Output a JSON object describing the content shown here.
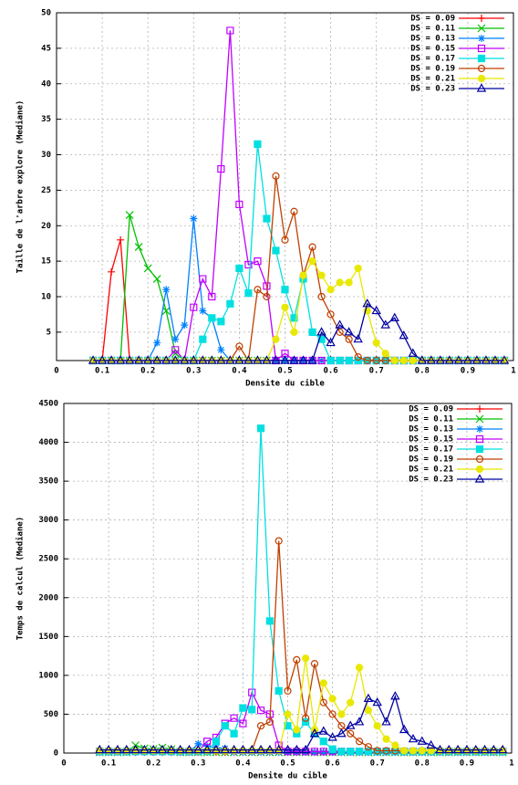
{
  "chart_data": [
    {
      "type": "line",
      "xlabel": "Densite du cible",
      "ylabel": "Taille de l'arbre explore (Mediane)",
      "xlim": [
        0,
        1
      ],
      "xticks": [
        0,
        0.1,
        0.2,
        0.3,
        0.4,
        0.5,
        0.6,
        0.7,
        0.8,
        0.9,
        1
      ],
      "ylim": [
        1,
        50
      ],
      "yticks": [
        5,
        10,
        15,
        20,
        25,
        30,
        35,
        40,
        45,
        50
      ],
      "grid": true,
      "legend": "top-right",
      "x": [
        0.08,
        0.1,
        0.12,
        0.14,
        0.16,
        0.18,
        0.2,
        0.22,
        0.24,
        0.26,
        0.28,
        0.3,
        0.32,
        0.34,
        0.36,
        0.38,
        0.4,
        0.42,
        0.44,
        0.46,
        0.48,
        0.5,
        0.52,
        0.54,
        0.56,
        0.58,
        0.6,
        0.62,
        0.64,
        0.66,
        0.68,
        0.7,
        0.72,
        0.74,
        0.76,
        0.78,
        0.8,
        0.82,
        0.84,
        0.86,
        0.88,
        0.9,
        0.92,
        0.94,
        0.96,
        0.98
      ],
      "series": [
        {
          "name": "DS = 0.09",
          "color": "#ff0000",
          "marker": "plus",
          "values": [
            1,
            1,
            13.5,
            18,
            1,
            1,
            1,
            1,
            1,
            1,
            1,
            1,
            1,
            1,
            1,
            1,
            1,
            1,
            1,
            1,
            1,
            1,
            1,
            1,
            1,
            1,
            1,
            1,
            1,
            1,
            1,
            1,
            1,
            1,
            1,
            1,
            1,
            1,
            1,
            1,
            1,
            1,
            1,
            1,
            1,
            1
          ]
        },
        {
          "name": "DS = 0.11",
          "color": "#00c000",
          "marker": "cross",
          "values": [
            1,
            1,
            1,
            1,
            21.5,
            17,
            14,
            12.5,
            8,
            2,
            1,
            1,
            1,
            1,
            1,
            1,
            1,
            1,
            1,
            1,
            1,
            1,
            1,
            1,
            1,
            1,
            1,
            1,
            1,
            1,
            1,
            1,
            1,
            1,
            1,
            1,
            1,
            1,
            1,
            1,
            1,
            1,
            1,
            1,
            1,
            1
          ]
        },
        {
          "name": "DS = 0.13",
          "color": "#0080ff",
          "marker": "star",
          "values": [
            1,
            1,
            1,
            1,
            1,
            1,
            1,
            3.5,
            11,
            4,
            6,
            21,
            8,
            7,
            2.5,
            1,
            1,
            1,
            1,
            1,
            1,
            1,
            1,
            1,
            1,
            1,
            1,
            1,
            1,
            1,
            1,
            1,
            1,
            1,
            1,
            1,
            1,
            1,
            1,
            1,
            1,
            1,
            1,
            1,
            1,
            1
          ]
        },
        {
          "name": "DS = 0.15",
          "color": "#c000ff",
          "marker": "square",
          "values": [
            1,
            1,
            1,
            1,
            1,
            1,
            1,
            1,
            1,
            2.5,
            1,
            8.5,
            12.5,
            10,
            28,
            47.5,
            23,
            14.5,
            15,
            11.5,
            1,
            2,
            1,
            1,
            1,
            1,
            1,
            1,
            1,
            1,
            1,
            1,
            1,
            1,
            1,
            1,
            1,
            1,
            1,
            1,
            1,
            1,
            1,
            1,
            1,
            1
          ]
        },
        {
          "name": "DS = 0.17",
          "color": "#00e0e0",
          "marker": "filled-square",
          "values": [
            1,
            1,
            1,
            1,
            1,
            1,
            1,
            1,
            1,
            1,
            1,
            1,
            4,
            7,
            6.5,
            9,
            14,
            10.5,
            31.5,
            21,
            16.5,
            11,
            7,
            12.5,
            5,
            4,
            1,
            1,
            1,
            1,
            1,
            1,
            1,
            1,
            1,
            1,
            1,
            1,
            1,
            1,
            1,
            1,
            1,
            1,
            1,
            1
          ]
        },
        {
          "name": "DS = 0.19",
          "color": "#c04000",
          "marker": "circle",
          "values": [
            1,
            1,
            1,
            1,
            1,
            1,
            1,
            1,
            1,
            1,
            1,
            1,
            1,
            1,
            1,
            1,
            3,
            1,
            11,
            10,
            27,
            18,
            22,
            13,
            17,
            10,
            7.5,
            5,
            4,
            1.5,
            1,
            1,
            1,
            1,
            1,
            1,
            1,
            1,
            1,
            1,
            1,
            1,
            1,
            1,
            1,
            1
          ]
        },
        {
          "name": "DS = 0.21",
          "color": "#e8e800",
          "marker": "filled-circle",
          "values": [
            1,
            1,
            1,
            1,
            1,
            1,
            1,
            1,
            1,
            1,
            1,
            1,
            1,
            1,
            1,
            1,
            1,
            1,
            1,
            1,
            4,
            8.5,
            5,
            13,
            15,
            13,
            11,
            12,
            12,
            14,
            8,
            3.5,
            2,
            1,
            1,
            1,
            1,
            1,
            1,
            1,
            1,
            1,
            1,
            1,
            1,
            1
          ]
        },
        {
          "name": "DS = 0.23",
          "color": "#0000a0",
          "marker": "triangle",
          "values": [
            1,
            1,
            1,
            1,
            1,
            1,
            1,
            1,
            1,
            1,
            1,
            1,
            1,
            1,
            1,
            1,
            1,
            1,
            1,
            1,
            1,
            1,
            1,
            1,
            1,
            5,
            3.5,
            6,
            5,
            4,
            9,
            8,
            6,
            7,
            4.5,
            2,
            1,
            1,
            1,
            1,
            1,
            1,
            1,
            1,
            1,
            1
          ]
        }
      ]
    },
    {
      "type": "line",
      "xlabel": "Densite du cible",
      "ylabel": "Temps de calcul (Mediane)",
      "xlim": [
        0,
        1
      ],
      "xticks": [
        0,
        0.1,
        0.2,
        0.3,
        0.4,
        0.5,
        0.6,
        0.7,
        0.8,
        0.9,
        1
      ],
      "ylim": [
        0,
        4500
      ],
      "yticks": [
        0,
        500,
        1000,
        1500,
        2000,
        2500,
        3000,
        3500,
        4000,
        4500
      ],
      "grid": true,
      "legend": "top-right",
      "x": [
        0.08,
        0.1,
        0.12,
        0.14,
        0.16,
        0.18,
        0.2,
        0.22,
        0.24,
        0.26,
        0.28,
        0.3,
        0.32,
        0.34,
        0.36,
        0.38,
        0.4,
        0.42,
        0.44,
        0.46,
        0.48,
        0.5,
        0.52,
        0.54,
        0.56,
        0.58,
        0.6,
        0.62,
        0.64,
        0.66,
        0.68,
        0.7,
        0.72,
        0.74,
        0.76,
        0.78,
        0.8,
        0.82,
        0.84,
        0.86,
        0.88,
        0.9,
        0.92,
        0.94,
        0.96,
        0.98
      ],
      "series": [
        {
          "name": "DS = 0.09",
          "color": "#ff0000",
          "marker": "plus",
          "values": [
            10,
            10,
            30,
            40,
            10,
            10,
            10,
            10,
            10,
            10,
            10,
            10,
            10,
            10,
            10,
            10,
            10,
            10,
            10,
            10,
            10,
            10,
            10,
            10,
            10,
            10,
            10,
            10,
            10,
            10,
            10,
            10,
            10,
            10,
            10,
            10,
            10,
            10,
            10,
            10,
            10,
            10,
            10,
            10,
            10,
            10
          ]
        },
        {
          "name": "DS = 0.11",
          "color": "#00c000",
          "marker": "cross",
          "values": [
            10,
            10,
            10,
            10,
            100,
            60,
            50,
            70,
            50,
            10,
            10,
            10,
            10,
            10,
            10,
            10,
            10,
            10,
            10,
            10,
            10,
            10,
            10,
            10,
            10,
            10,
            10,
            10,
            10,
            10,
            10,
            10,
            10,
            10,
            10,
            10,
            10,
            10,
            10,
            10,
            10,
            10,
            10,
            10,
            10,
            10
          ]
        },
        {
          "name": "DS = 0.13",
          "color": "#0080ff",
          "marker": "star",
          "values": [
            10,
            10,
            10,
            10,
            10,
            10,
            10,
            10,
            10,
            10,
            10,
            120,
            90,
            70,
            60,
            10,
            10,
            10,
            10,
            10,
            10,
            10,
            10,
            10,
            10,
            10,
            10,
            10,
            10,
            10,
            10,
            10,
            10,
            10,
            10,
            10,
            10,
            10,
            10,
            10,
            10,
            10,
            10,
            10,
            10,
            10
          ]
        },
        {
          "name": "DS = 0.15",
          "color": "#c000ff",
          "marker": "square",
          "values": [
            20,
            20,
            20,
            20,
            20,
            20,
            20,
            20,
            20,
            20,
            20,
            20,
            150,
            200,
            380,
            450,
            380,
            780,
            550,
            500,
            100,
            20,
            20,
            20,
            20,
            20,
            20,
            20,
            20,
            20,
            20,
            20,
            20,
            20,
            20,
            20,
            20,
            20,
            20,
            20,
            20,
            20,
            20,
            20,
            20,
            20
          ]
        },
        {
          "name": "DS = 0.17",
          "color": "#00e0e0",
          "marker": "filled-square",
          "values": [
            20,
            20,
            20,
            20,
            20,
            20,
            20,
            20,
            20,
            20,
            20,
            20,
            20,
            150,
            350,
            250,
            580,
            560,
            4180,
            1700,
            800,
            350,
            250,
            400,
            250,
            150,
            50,
            20,
            20,
            20,
            20,
            20,
            20,
            20,
            20,
            20,
            20,
            20,
            20,
            20,
            20,
            20,
            20,
            20,
            20,
            20
          ]
        },
        {
          "name": "DS = 0.19",
          "color": "#c04000",
          "marker": "circle",
          "values": [
            30,
            30,
            30,
            30,
            30,
            30,
            30,
            30,
            30,
            30,
            30,
            30,
            30,
            30,
            30,
            30,
            30,
            30,
            350,
            400,
            2730,
            800,
            1200,
            450,
            1150,
            650,
            500,
            350,
            250,
            150,
            80,
            30,
            30,
            30,
            30,
            30,
            30,
            30,
            30,
            30,
            30,
            30,
            30,
            30,
            30,
            30
          ]
        },
        {
          "name": "DS = 0.21",
          "color": "#e8e800",
          "marker": "filled-circle",
          "values": [
            30,
            30,
            30,
            30,
            30,
            30,
            30,
            30,
            30,
            30,
            30,
            30,
            30,
            30,
            30,
            30,
            30,
            30,
            30,
            30,
            30,
            500,
            300,
            1220,
            300,
            900,
            700,
            500,
            650,
            1100,
            550,
            350,
            180,
            100,
            30,
            30,
            30,
            30,
            30,
            30,
            30,
            30,
            30,
            30,
            30,
            30
          ]
        },
        {
          "name": "DS = 0.23",
          "color": "#0000a0",
          "marker": "triangle",
          "values": [
            40,
            40,
            40,
            40,
            40,
            40,
            40,
            40,
            40,
            40,
            40,
            40,
            40,
            40,
            40,
            40,
            40,
            40,
            40,
            40,
            40,
            40,
            40,
            40,
            250,
            280,
            200,
            250,
            350,
            400,
            700,
            650,
            400,
            730,
            300,
            180,
            150,
            100,
            40,
            40,
            40,
            40,
            40,
            40,
            40,
            40
          ]
        }
      ]
    }
  ]
}
